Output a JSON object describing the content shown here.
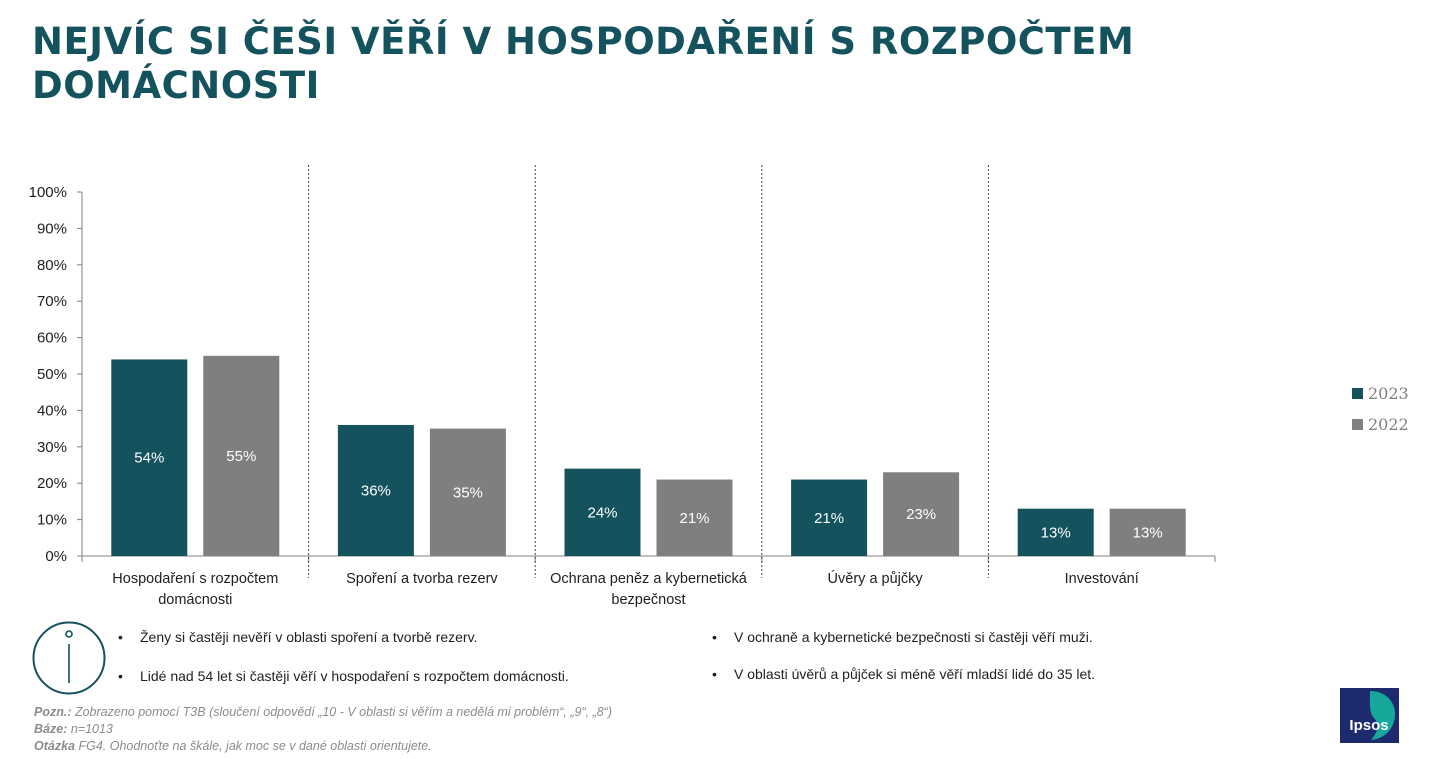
{
  "title": "NEJVÍC SI ČEŠI VĚŘÍ V HOSPODAŘENÍ S ROZPOČTEM DOMÁCNOSTI",
  "colors": {
    "title": "#14525e",
    "series_2023": "#14525e",
    "series_2022": "#7f7f7f"
  },
  "chart_data": {
    "type": "bar",
    "categories": [
      [
        "Hospodaření s rozpočtem",
        "domácnosti"
      ],
      [
        "Spoření a tvorba rezerv"
      ],
      [
        "Ochrana peněz a kybernetická",
        "bezpečnost"
      ],
      [
        "Úvěry a půjčky"
      ],
      [
        "Investování"
      ]
    ],
    "series": [
      {
        "name": "2023",
        "color": "#14525e",
        "values": [
          54,
          36,
          24,
          21,
          13
        ],
        "labels": [
          "54%",
          "36%",
          "24%",
          "21%",
          "13%"
        ]
      },
      {
        "name": "2022",
        "color": "#7f7f7f",
        "values": [
          55,
          35,
          21,
          23,
          13
        ],
        "labels": [
          "55%",
          "35%",
          "21%",
          "23%",
          "13%"
        ]
      }
    ],
    "ylim": [
      0,
      100
    ],
    "yticks": [
      "0%",
      "10%",
      "20%",
      "30%",
      "40%",
      "50%",
      "60%",
      "70%",
      "80%",
      "90%",
      "100%"
    ],
    "grid": false,
    "legend_position": "right",
    "category_separators": "dotted"
  },
  "legend": [
    {
      "label": "2023",
      "color": "#14525e"
    },
    {
      "label": "2022",
      "color": "#7f7f7f"
    }
  ],
  "bullets": {
    "symbol": "•",
    "left": [
      "Ženy si častěji nevěří v oblasti spoření a tvorbě rezerv.",
      "Lidé nad 54 let si častěji věří v hospodaření s rozpočtem domácnosti."
    ],
    "right": [
      "V ochraně a kybernetické bezpečnosti si častěji věří muži.",
      "V oblasti úvěrů a půjček si méně věří mladší lidé do 35 let."
    ]
  },
  "notes": {
    "pozn_label": "Pozn.:",
    "pozn_text": " Zobrazeno pomocí T3B (sloučení odpovědí „10 - V oblasti si věřím a nedělá mi problém“, „9“, „8“)",
    "baze_label": "Báze:",
    "baze_text": " n=1013",
    "otazka_label": "Otázka",
    "otazka_text": " FG4. Ohodnoťte na škále, jak moc se v dané oblasti orientujete."
  },
  "logo": {
    "text": "Ipsos",
    "icon": "ipsos-logo"
  }
}
